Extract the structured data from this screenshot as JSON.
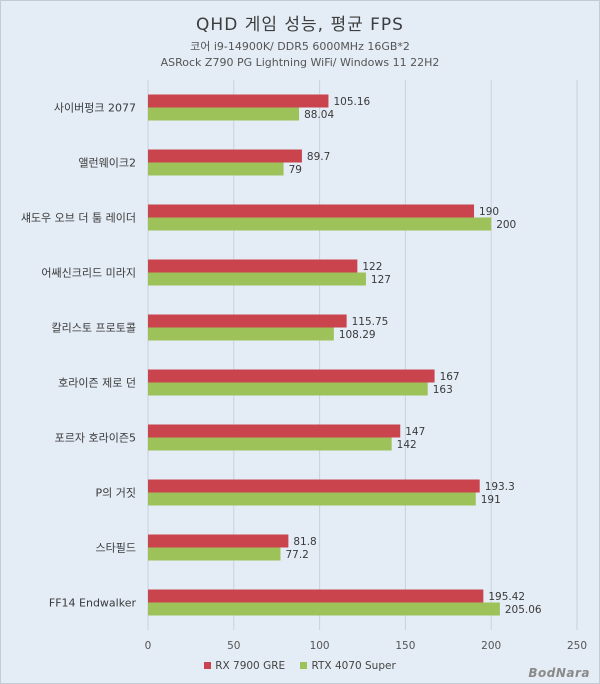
{
  "chart_data": {
    "type": "bar",
    "orientation": "horizontal",
    "title": "QHD 게임 성능, 평균 FPS",
    "subtitle_lines": [
      "코어 i9-14900K/ DDR5 6000MHz 16GB*2",
      "ASRock Z790 PG Lightning WiFi/ Windows 11 22H2"
    ],
    "categories": [
      "사이버펑크 2077",
      "앨런웨이크2",
      "섀도우 오브 더 툼 레이더",
      "어쌔신크리드 미라지",
      "칼리스토 프로토콜",
      "호라이즌 제로 던",
      "포르자 호라이즌5",
      "P의 거짓",
      "스타필드",
      "FF14 Endwalker"
    ],
    "series": [
      {
        "name": "RX 7900 GRE",
        "color": "#c9444d",
        "values": [
          105.16,
          89.7,
          190,
          122,
          115.75,
          167,
          147,
          193.3,
          81.8,
          195.42
        ],
        "labels": [
          "105.16",
          "89.7",
          "190",
          "122",
          "115.75",
          "167",
          "147",
          "193.3",
          "81.8",
          "195.42"
        ]
      },
      {
        "name": "RTX 4070 Super",
        "color": "#9dc25a",
        "values": [
          88.04,
          79,
          200,
          127,
          108.29,
          163,
          142,
          191,
          77.2,
          205.06
        ],
        "labels": [
          "88.04",
          "79",
          "200",
          "127",
          "108.29",
          "163",
          "142",
          "191",
          "77.2",
          "205.06"
        ]
      }
    ],
    "xlim": [
      0,
      250
    ],
    "xticks": [
      "0",
      "50",
      "100",
      "150",
      "200",
      "250"
    ],
    "grid": true,
    "legend_position": "bottom"
  },
  "watermark": "BodNara"
}
